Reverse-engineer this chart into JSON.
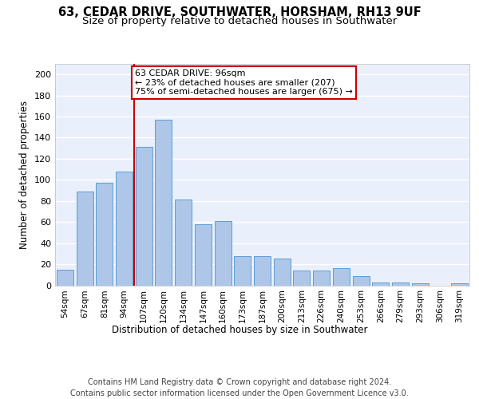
{
  "title": "63, CEDAR DRIVE, SOUTHWATER, HORSHAM, RH13 9UF",
  "subtitle": "Size of property relative to detached houses in Southwater",
  "xlabel": "Distribution of detached houses by size in Southwater",
  "ylabel": "Number of detached properties",
  "categories": [
    "54sqm",
    "67sqm",
    "81sqm",
    "94sqm",
    "107sqm",
    "120sqm",
    "134sqm",
    "147sqm",
    "160sqm",
    "173sqm",
    "187sqm",
    "200sqm",
    "213sqm",
    "226sqm",
    "240sqm",
    "253sqm",
    "266sqm",
    "279sqm",
    "293sqm",
    "306sqm",
    "319sqm"
  ],
  "values": [
    15,
    89,
    97,
    108,
    131,
    157,
    81,
    58,
    61,
    28,
    28,
    25,
    14,
    14,
    16,
    9,
    3,
    3,
    2,
    0,
    2
  ],
  "bar_color": "#aec6e8",
  "bar_edge_color": "#5a9fd4",
  "vline_x": 3.5,
  "vline_color": "#cc0000",
  "annotation_text": "63 CEDAR DRIVE: 96sqm\n← 23% of detached houses are smaller (207)\n75% of semi-detached houses are larger (675) →",
  "annotation_box_color": "#ffffff",
  "annotation_box_edge_color": "#cc0000",
  "ylim": [
    0,
    210
  ],
  "yticks": [
    0,
    20,
    40,
    60,
    80,
    100,
    120,
    140,
    160,
    180,
    200
  ],
  "background_color": "#eaf0fb",
  "grid_color": "#ffffff",
  "footer": "Contains HM Land Registry data © Crown copyright and database right 2024.\nContains public sector information licensed under the Open Government Licence v3.0.",
  "title_fontsize": 10.5,
  "subtitle_fontsize": 9.5,
  "xlabel_fontsize": 8.5,
  "ylabel_fontsize": 8.5,
  "annotation_fontsize": 8,
  "footer_fontsize": 7,
  "tick_fontsize": 7.5,
  "ytick_fontsize": 8
}
